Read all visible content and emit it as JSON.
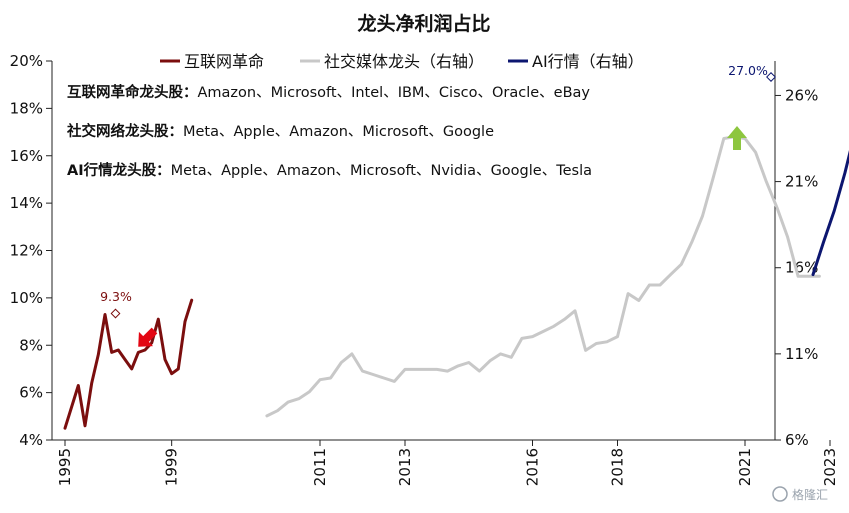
{
  "chart_data": {
    "type": "line",
    "title": "龙头净利润占比",
    "x_ticks": [
      "1995",
      "1999",
      "2011",
      "2013",
      "2016",
      "2018",
      "2021",
      "2023"
    ],
    "y_left": {
      "ticks": [
        "4%",
        "6%",
        "8%",
        "10%",
        "12%",
        "14%",
        "16%",
        "18%",
        "20%"
      ],
      "ylim": [
        4,
        20
      ]
    },
    "y_right": {
      "ticks": [
        "6%",
        "11%",
        "16%",
        "21%",
        "26%"
      ],
      "ylim": [
        6,
        28
      ]
    },
    "grid": false,
    "legend_position": "top",
    "series": [
      {
        "name": "互联网革命",
        "color": "#7b0e0e",
        "axis": "left",
        "x": [
          1995.0,
          1995.5,
          1995.75,
          1996.0,
          1996.25,
          1996.5,
          1996.75,
          1997.0,
          1997.25,
          1997.5,
          1997.75,
          1998.0,
          1998.25,
          1998.5,
          1998.75,
          1999.0,
          1999.25,
          1999.5,
          1999.75,
          2000.0,
          2000.25,
          2000.5,
          2000.75,
          2001.0
        ],
        "values": [
          4.5,
          6.3,
          4.6,
          6.4,
          7.6,
          9.3,
          7.7,
          7.8,
          7.4,
          7.0,
          7.7,
          7.8,
          8.1,
          9.1,
          7.4,
          6.8,
          7.0,
          9.0,
          9.9,
          null,
          null,
          null,
          null,
          null
        ]
      },
      {
        "name": "社交媒体龙头（右轴）",
        "color": "#c8c8c8",
        "axis": "right",
        "x": [
          2009.75,
          2010.0,
          2010.25,
          2010.5,
          2010.75,
          2011.0,
          2011.25,
          2011.5,
          2011.75,
          2012.0,
          2012.25,
          2012.5,
          2012.75,
          2013.0,
          2013.25,
          2013.5,
          2013.75,
          2014.0,
          2014.25,
          2014.5,
          2014.75,
          2015.0,
          2015.25,
          2015.5,
          2015.75,
          2016.0,
          2016.25,
          2016.5,
          2016.75,
          2017.0,
          2017.25,
          2017.5,
          2017.75,
          2018.0,
          2018.25,
          2018.5,
          2018.75,
          2019.0,
          2019.25,
          2019.5,
          2019.75,
          2020.0,
          2020.25,
          2020.5,
          2020.75,
          2021.0,
          2021.25,
          2021.5,
          2021.75,
          2022.0,
          2022.25,
          2022.5,
          2022.75
        ],
        "values": [
          7.4,
          7.7,
          8.2,
          8.4,
          8.8,
          9.5,
          9.6,
          10.5,
          11.0,
          10.0,
          9.8,
          9.6,
          9.4,
          10.1,
          10.1,
          10.1,
          10.1,
          10.0,
          10.3,
          10.5,
          10.0,
          10.6,
          11.0,
          10.8,
          11.9,
          12.0,
          12.3,
          12.6,
          13.0,
          13.5,
          11.2,
          11.6,
          11.7,
          12.0,
          14.5,
          14.1,
          15.0,
          15.0,
          15.6,
          16.2,
          17.5,
          19.0,
          21.2,
          23.5,
          23.6,
          23.5,
          22.7,
          21.0,
          19.5,
          17.8,
          15.5,
          15.5,
          15.5
        ],
        "note": "values in right-axis units"
      },
      {
        "name": "AI行情（右轴）",
        "color": "#0c1670",
        "axis": "right",
        "x": [
          2022.6,
          2022.85,
          2023.1,
          2023.35,
          2023.6,
          2023.85,
          2024.1,
          2024.35
        ],
        "values": [
          15.6,
          17.5,
          19.3,
          21.5,
          24.0,
          25.7,
          27.0,
          null
        ]
      }
    ],
    "annotations": [
      {
        "text": "9.3%",
        "series": "互联网革命",
        "value": 9.3
      },
      {
        "text": "27.0%",
        "series": "AI行情（右轴）",
        "value": 27.0
      }
    ],
    "notes": [
      {
        "bold": "互联网革命龙头股：",
        "text": "Amazon、Microsoft、Intel、IBM、Cisco、Oracle、eBay"
      },
      {
        "bold": "社交网络龙头股：",
        "text": "Meta、Apple、Amazon、Microsoft、Google"
      },
      {
        "bold": "AI行情龙头股：",
        "text": "Meta、Apple、Amazon、Microsoft、Nvidia、Google、Tesla"
      }
    ],
    "arrows": [
      {
        "color": "#e30613",
        "direction": "down-right"
      },
      {
        "color": "#8dc63f",
        "direction": "up"
      }
    ]
  },
  "watermark": "格隆汇"
}
